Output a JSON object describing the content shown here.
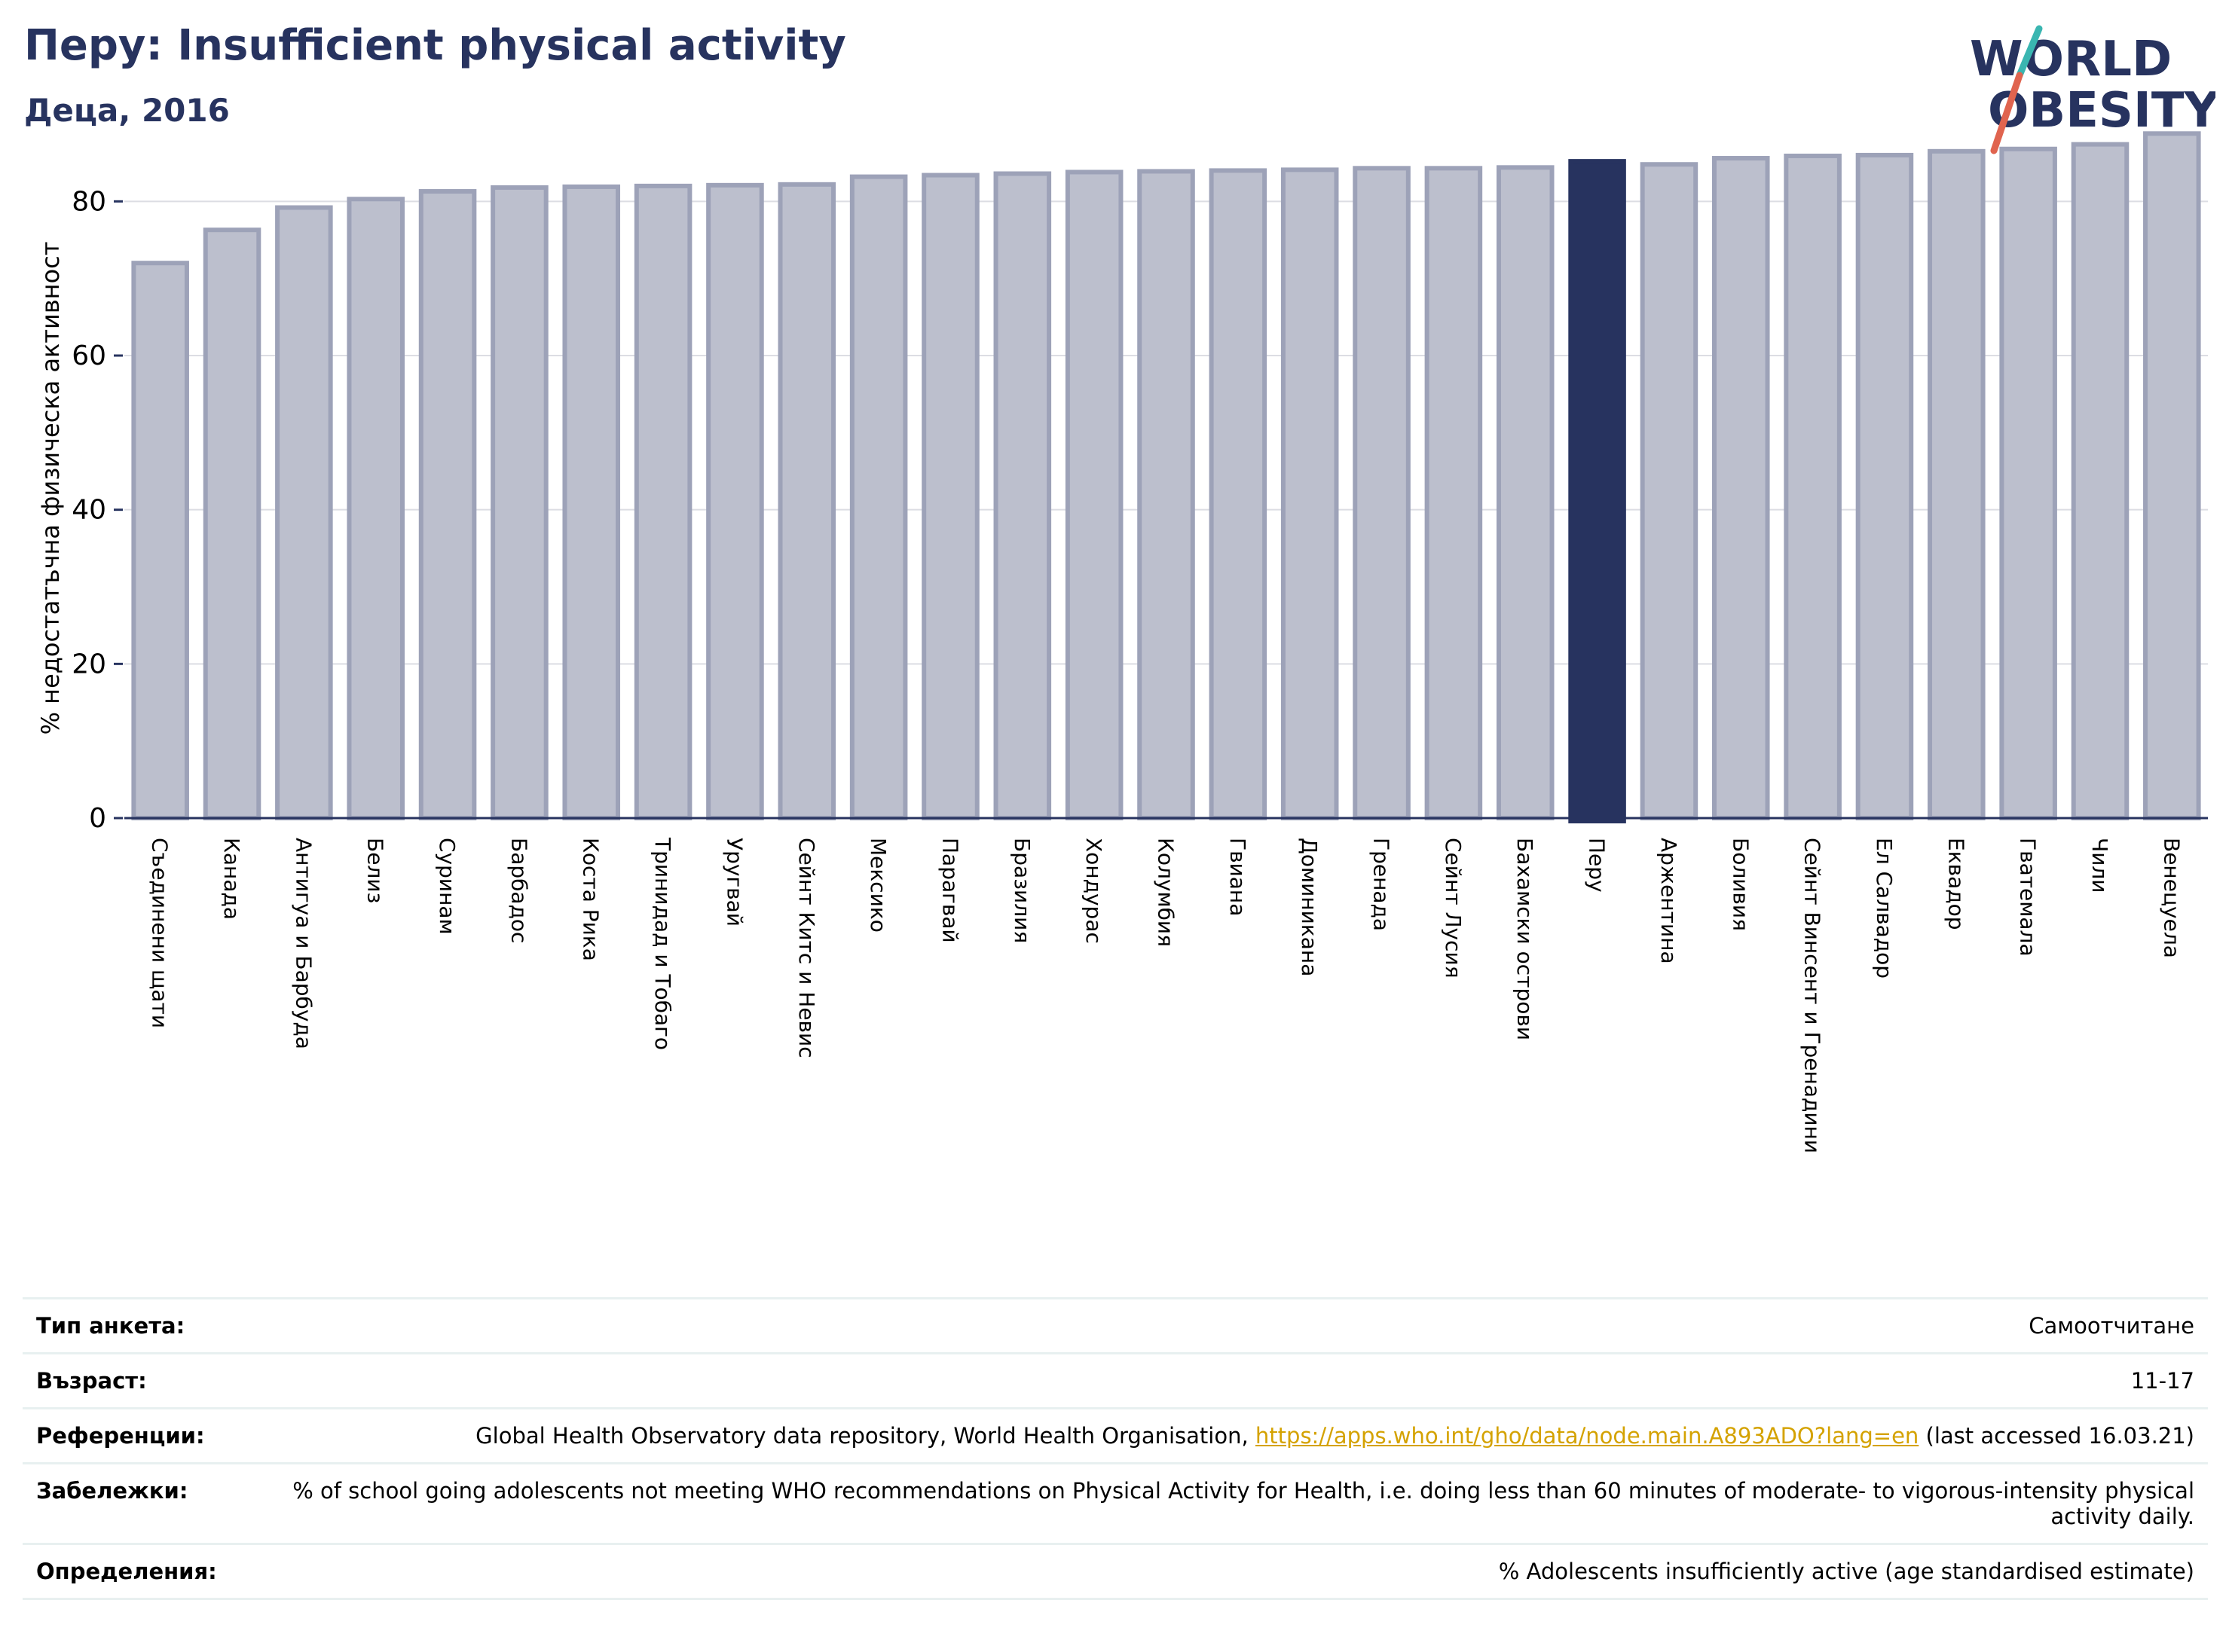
{
  "header": {
    "title": "Перу: Insufficient physical activity",
    "subtitle": "Деца, 2016",
    "logo_line1": "WORLD",
    "logo_line2": "OBESITY"
  },
  "colors": {
    "title": "#27335f",
    "bar": "#bcbfcd",
    "bar_border": "#9da2b8",
    "highlight": "#27335f",
    "link": "#d4a200"
  },
  "chart_data": {
    "type": "bar",
    "title": "Перу: Insufficient physical activity",
    "subtitle": "Деца, 2016",
    "ylabel": "% недостатъчна физическа активност",
    "xlabel": "",
    "ylim": [
      0,
      90
    ],
    "yticks": [
      0,
      20,
      40,
      60,
      80
    ],
    "grid": true,
    "highlight": "Перу",
    "categories": [
      "Съединени щати",
      "Канада",
      "Антигуа и Барбуда",
      "Белиз",
      "Суринам",
      "Барбадос",
      "Коста Рика",
      "Тринидад и Тобаго",
      "Уругвай",
      "Сейнт Китс и Невис",
      "Мексико",
      "Парагвай",
      "Бразилия",
      "Хондурас",
      "Колумбия",
      "Гвиана",
      "Доминикана",
      "Гренада",
      "Сейнт Лусия",
      "Бахамски острови",
      "Перу",
      "Аржентина",
      "Боливия",
      "Сейнт Винсент и Гренадини",
      "Ел Салвадор",
      "Еквадор",
      "Гватемала",
      "Чили",
      "Венецуела"
    ],
    "values": [
      72.0,
      76.3,
      79.2,
      80.3,
      81.3,
      81.8,
      81.9,
      82.0,
      82.1,
      82.2,
      83.2,
      83.4,
      83.6,
      83.8,
      83.9,
      84.0,
      84.1,
      84.3,
      84.3,
      84.4,
      85.2,
      84.8,
      85.6,
      85.9,
      86.0,
      86.5,
      86.8,
      87.4,
      88.8
    ]
  },
  "meta": {
    "rows": [
      {
        "label": "Тип анкета:",
        "value": "Самоотчитане"
      },
      {
        "label": "Възраст:",
        "value": "11-17"
      },
      {
        "label": "Референции:",
        "value_pre": "Global Health Observatory data repository, World Health Organisation, ",
        "link": "https://apps.who.int/gho/data/node.main.A893ADO?lang=en",
        "value_post": " (last accessed 16.03.21)"
      },
      {
        "label": "Забележки:",
        "value": "% of school going adolescents not meeting WHO recommendations on Physical Activity for Health, i.e. doing less than 60 minutes of moderate- to vigorous-intensity physical activity daily."
      },
      {
        "label": "Определения:",
        "value": "% Adolescents insufficiently active (age standardised estimate)"
      }
    ]
  }
}
